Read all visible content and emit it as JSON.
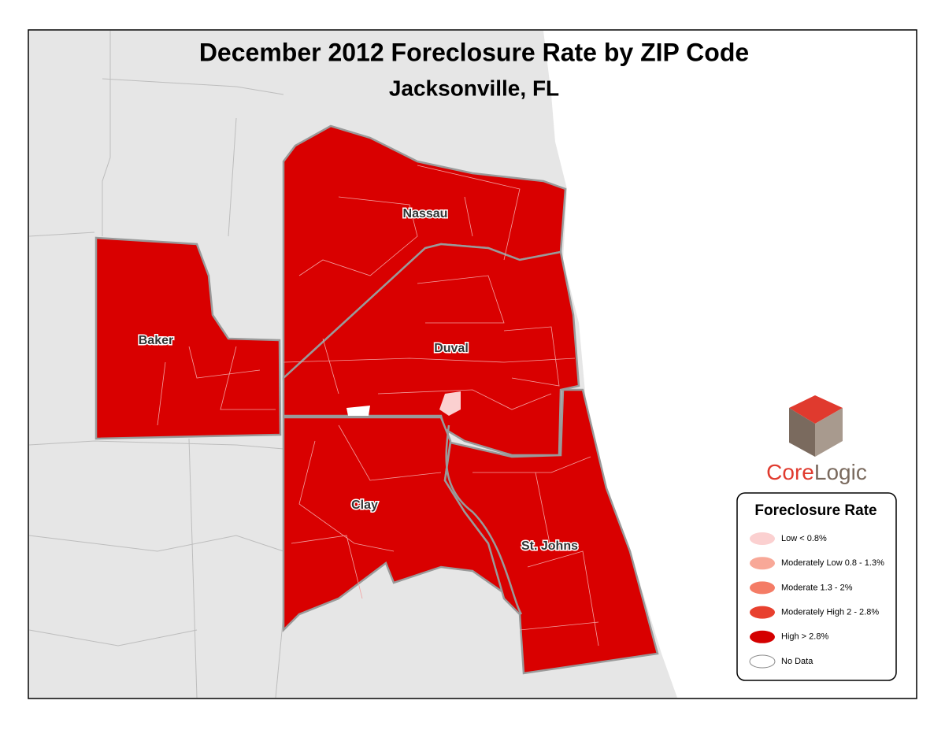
{
  "header": {
    "title": "December 2012 Foreclosure Rate by ZIP Code",
    "subtitle": "Jacksonville, FL"
  },
  "counties": [
    "Nassau",
    "Baker",
    "Duval",
    "Clay",
    "St. Johns"
  ],
  "logo": [
    "Core",
    "Logic"
  ],
  "legend": {
    "title": "Foreclosure Rate",
    "items": [
      {
        "label": "Low  < 0.8%",
        "color": "#fbd0d0"
      },
      {
        "label": "Moderately Low  0.8 - 1.3%",
        "color": "#f8a898"
      },
      {
        "label": "Moderate  1.3 - 2%",
        "color": "#f47c66"
      },
      {
        "label": "Moderately High  2 - 2.8%",
        "color": "#e8402e"
      },
      {
        "label": "High  > 2.8%",
        "color": "#d40000"
      },
      {
        "label": "No Data",
        "color": "#ffffff"
      }
    ]
  }
}
